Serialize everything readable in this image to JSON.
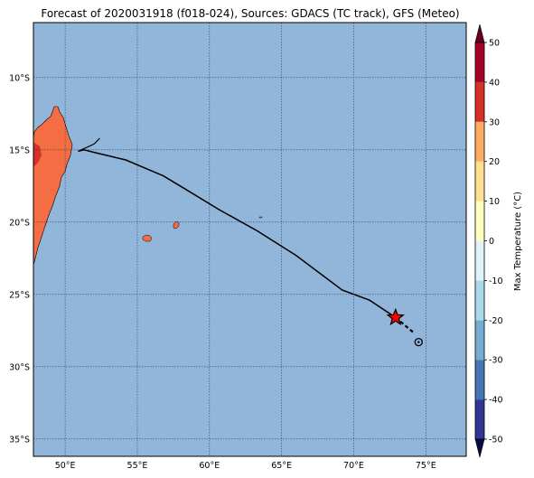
{
  "title": "Forecast of 2020031918 (f018-024), Sources: GDACS (TC track), GFS (Meteo)",
  "map": {
    "lon_range": [
      47.8,
      77.8
    ],
    "lat_range": [
      -36.2,
      -6.2
    ],
    "lon_ticks": [
      {
        "value": 50,
        "label": "50°E"
      },
      {
        "value": 55,
        "label": "55°E"
      },
      {
        "value": 60,
        "label": "60°E"
      },
      {
        "value": 65,
        "label": "65°E"
      },
      {
        "value": 70,
        "label": "70°E"
      },
      {
        "value": 75,
        "label": "75°E"
      }
    ],
    "lat_ticks": [
      {
        "value": -10,
        "label": "10°S"
      },
      {
        "value": -15,
        "label": "15°S"
      },
      {
        "value": -20,
        "label": "20°S"
      },
      {
        "value": -25,
        "label": "25°S"
      },
      {
        "value": -30,
        "label": "30°S"
      },
      {
        "value": -35,
        "label": "35°S"
      }
    ],
    "grid": true,
    "ocean_color": "#92b6da",
    "land_color": "#f46d43",
    "land_hot_color": "#d73027",
    "track_color": "#000000",
    "storm_marker_color": "#ff0000",
    "track": [
      [
        50.9,
        -15.1
      ],
      [
        51.3,
        -15.0
      ],
      [
        52.1,
        -15.2
      ],
      [
        54.2,
        -15.7
      ],
      [
        56.8,
        -16.8
      ],
      [
        58.8,
        -18.0
      ],
      [
        60.6,
        -19.1
      ],
      [
        63.3,
        -20.6
      ],
      [
        66.0,
        -22.3
      ],
      [
        69.2,
        -24.7
      ],
      [
        71.1,
        -25.4
      ],
      [
        72.9,
        -26.6
      ]
    ],
    "track_branch": [
      [
        50.9,
        -15.1
      ],
      [
        52.0,
        -14.6
      ],
      [
        52.4,
        -14.2
      ]
    ],
    "forecast_dashed": [
      [
        72.9,
        -26.6
      ],
      [
        74.1,
        -27.6
      ]
    ],
    "storm_position": [
      72.9,
      -26.6
    ],
    "forecast_position": [
      74.5,
      -28.3
    ]
  },
  "colorbar": {
    "label": "Max Temperature (°C)",
    "min": -50,
    "max": 50,
    "ticks": [
      50,
      40,
      30,
      20,
      10,
      0,
      -10,
      -20,
      -30,
      -40,
      -50
    ],
    "levels": [
      {
        "from": -50,
        "to": -40,
        "color": "#313695"
      },
      {
        "from": -40,
        "to": -30,
        "color": "#4575b4"
      },
      {
        "from": -30,
        "to": -20,
        "color": "#74add1"
      },
      {
        "from": -20,
        "to": -10,
        "color": "#abd9e9"
      },
      {
        "from": -10,
        "to": 0,
        "color": "#e0f3f8"
      },
      {
        "from": 0,
        "to": 10,
        "color": "#ffffbf"
      },
      {
        "from": 10,
        "to": 20,
        "color": "#fee090"
      },
      {
        "from": 20,
        "to": 30,
        "color": "#fdae61"
      },
      {
        "from": 30,
        "to": 40,
        "color": "#d73027"
      },
      {
        "from": 40,
        "to": 50,
        "color": "#a50026"
      }
    ],
    "under_color": "#0b0b45",
    "over_color": "#67001f"
  }
}
